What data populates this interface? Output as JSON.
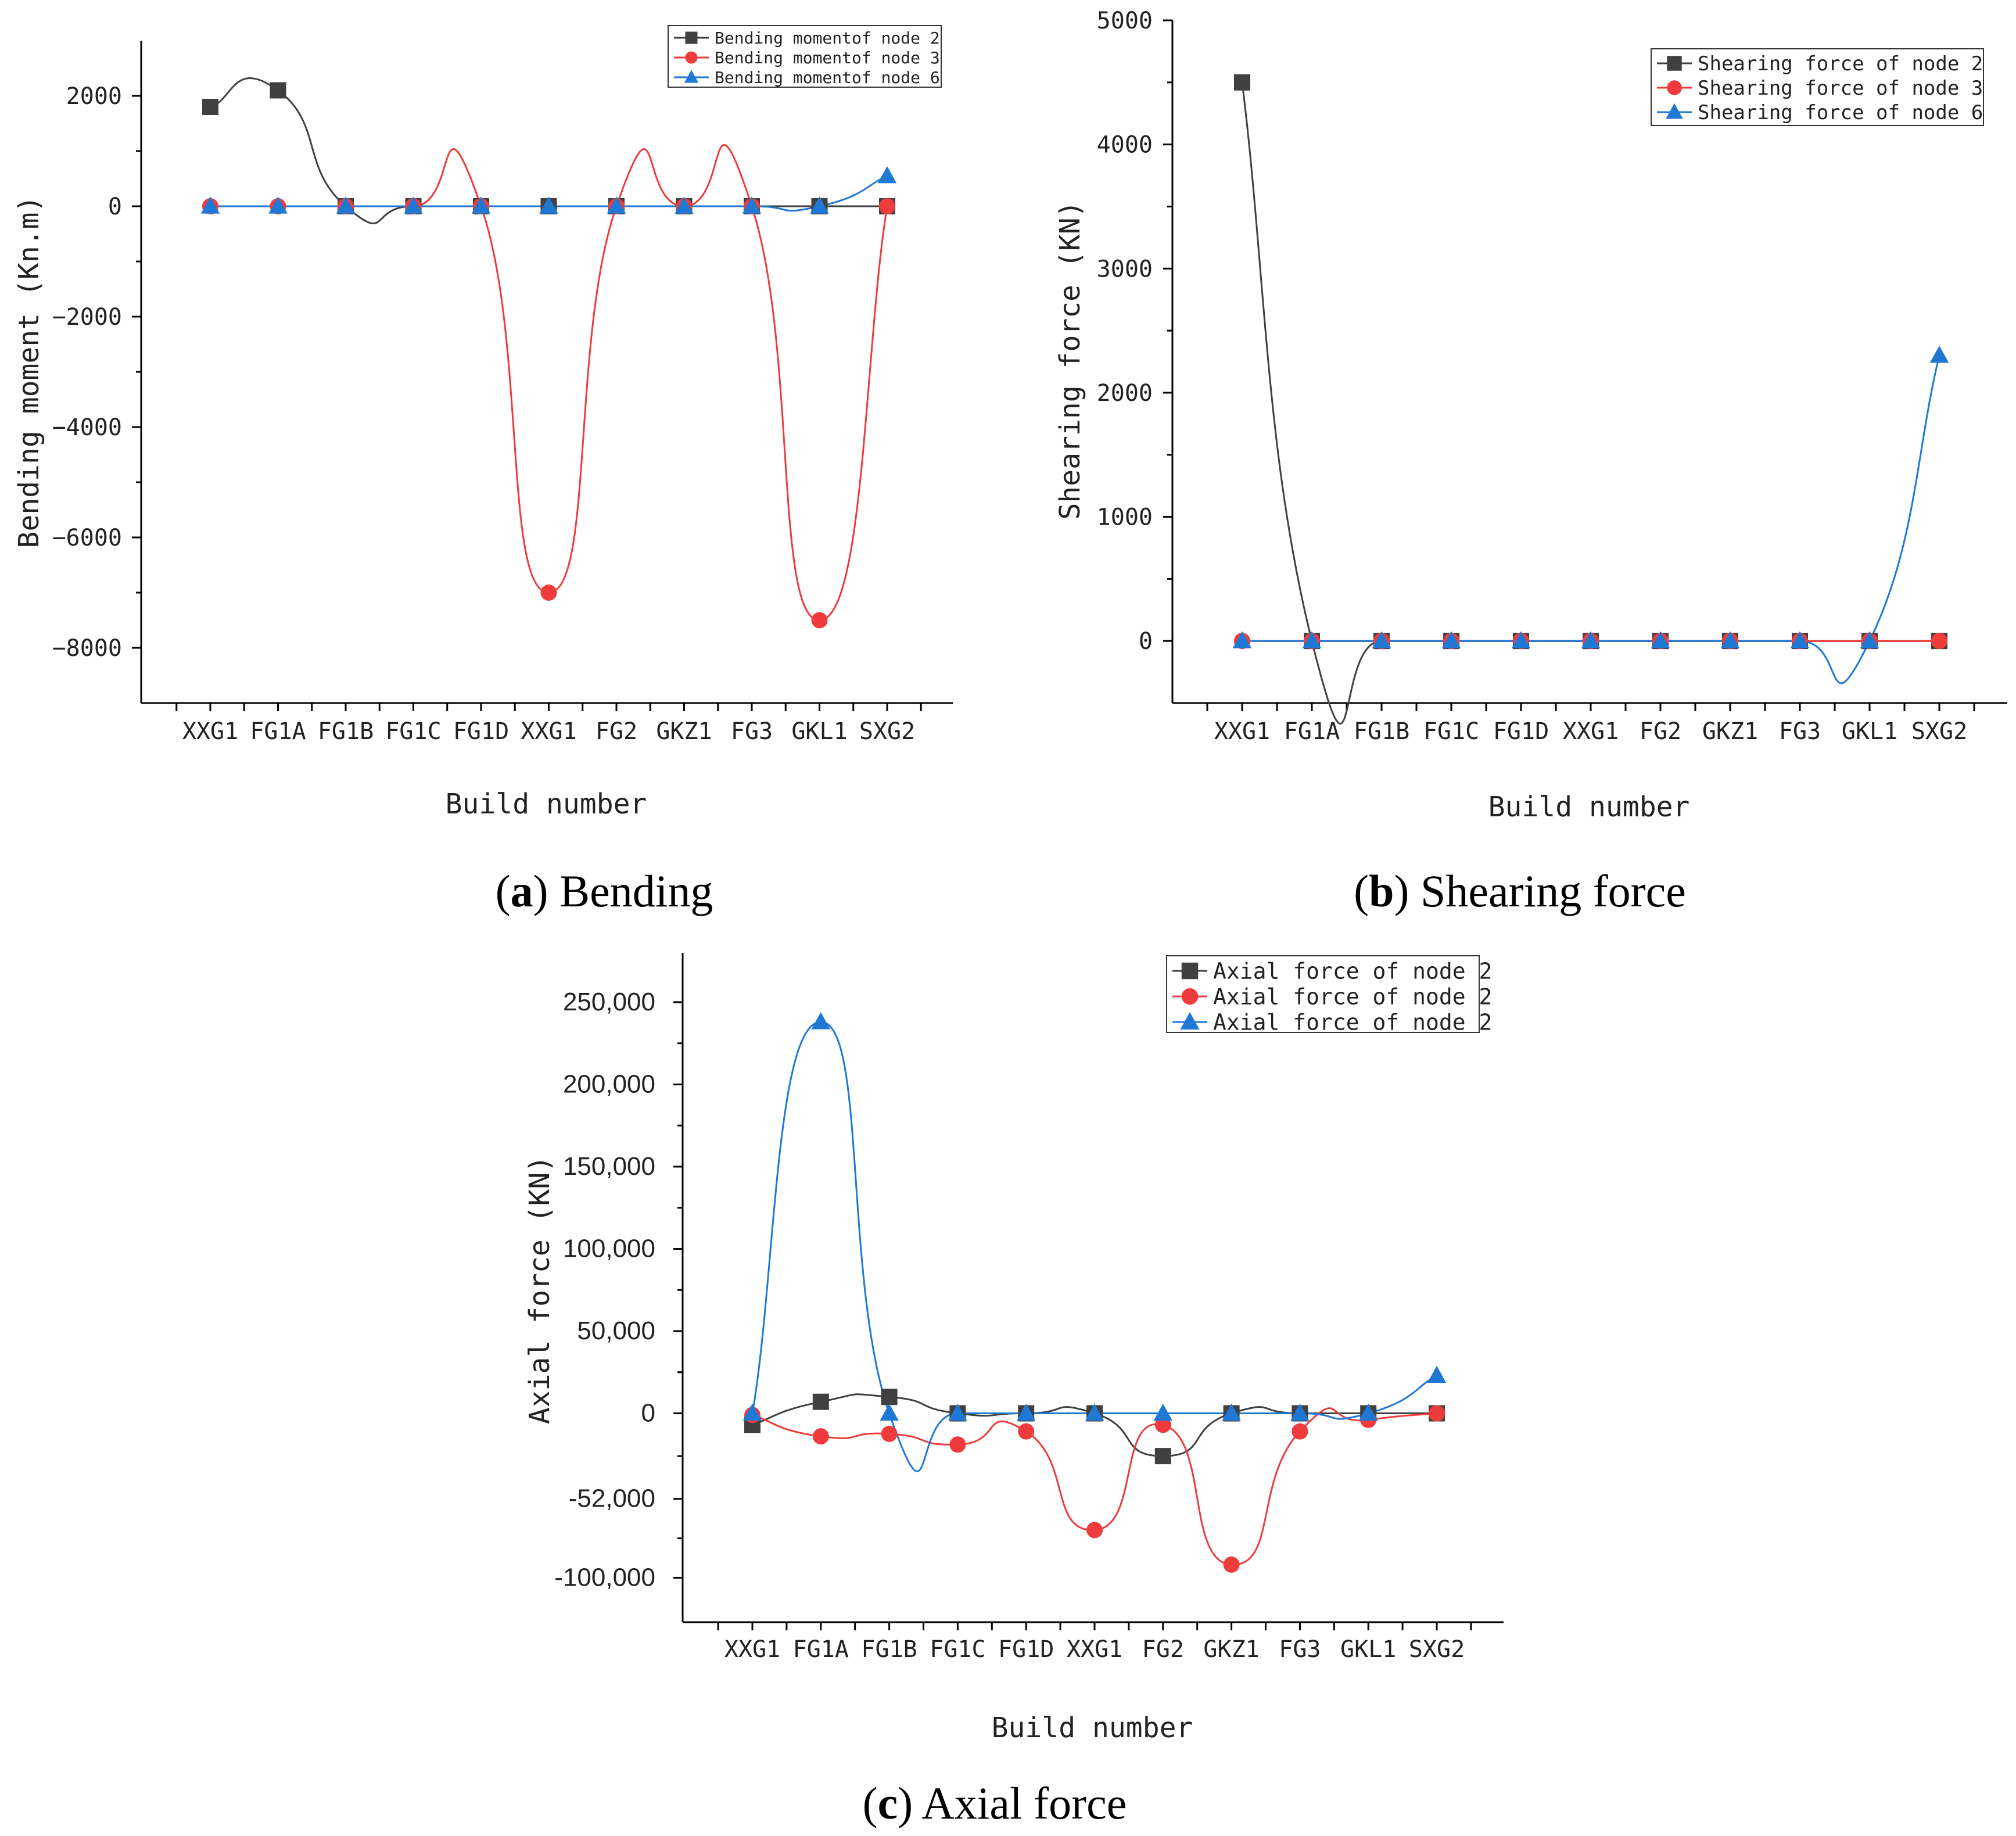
{
  "chart_data": [
    {
      "id": "a",
      "type": "line",
      "caption_letter": "a",
      "caption_text": "Bending",
      "ylabel": "Bending moment (Kn.m)",
      "xlabel": "Build number",
      "ylim": [
        -9000,
        3000
      ],
      "yticks": [
        2000,
        0,
        -2000,
        -4000,
        -6000,
        -8000
      ],
      "ytick_labels": [
        "2000",
        "0",
        "−2000",
        "−4000",
        "−6000",
        "−8000"
      ],
      "categories": [
        "XXG1",
        "FG1A",
        "FG1B",
        "FG1C",
        "FG1D",
        "XXG1",
        "FG2",
        "GKZ1",
        "FG3",
        "GKL1",
        "SXG2"
      ],
      "legend_position": "top-right",
      "series": [
        {
          "name": "Bending momentof node 2",
          "color": "#404040",
          "marker": "square",
          "values": [
            1800,
            2100,
            0,
            0,
            0,
            0,
            0,
            0,
            0,
            0,
            0
          ]
        },
        {
          "name": "Bending momentof node 3",
          "color": "#ef3b3b",
          "marker": "circle",
          "values": [
            0,
            0,
            0,
            0,
            0,
            -7000,
            0,
            0,
            0,
            -7500,
            0
          ]
        },
        {
          "name": "Bending momentof node 6",
          "color": "#1f78d4",
          "marker": "triangle",
          "values": [
            0,
            0,
            0,
            0,
            0,
            0,
            0,
            0,
            0,
            0,
            550
          ]
        }
      ]
    },
    {
      "id": "b",
      "type": "line",
      "caption_letter": "b",
      "caption_text": "Shearing force",
      "ylabel": "Shearing force (KN)",
      "xlabel": "Build number",
      "ylim": [
        -500,
        5000
      ],
      "yticks": [
        5000,
        4000,
        3000,
        2000,
        1000,
        0
      ],
      "ytick_labels": [
        "5000",
        "4000",
        "3000",
        "2000",
        "1000",
        "0"
      ],
      "categories": [
        "XXG1",
        "FG1A",
        "FG1B",
        "FG1C",
        "FG1D",
        "XXG1",
        "FG2",
        "GKZ1",
        "FG3",
        "GKL1",
        "SXG2"
      ],
      "legend_position": "top-right",
      "series": [
        {
          "name": "Shearing force of node 2",
          "color": "#404040",
          "marker": "square",
          "values": [
            4500,
            0,
            0,
            0,
            0,
            0,
            0,
            0,
            0,
            0,
            0
          ]
        },
        {
          "name": "Shearing force of node 3",
          "color": "#ef3b3b",
          "marker": "circle",
          "values": [
            0,
            0,
            0,
            0,
            0,
            0,
            0,
            0,
            0,
            0,
            0
          ]
        },
        {
          "name": "Shearing force of node 6",
          "color": "#1f78d4",
          "marker": "triangle",
          "values": [
            0,
            0,
            0,
            0,
            0,
            0,
            0,
            0,
            0,
            0,
            2300
          ]
        }
      ]
    },
    {
      "id": "c",
      "type": "line",
      "caption_letter": "c",
      "caption_text": "Axial force",
      "ylabel": "Axial force (KN)",
      "xlabel": "Build number",
      "ylim": [
        -127000,
        280000
      ],
      "yticks": [
        250000,
        200000,
        150000,
        100000,
        50000,
        0,
        -52000,
        -100000
      ],
      "ytick_labels": [
        "250,000",
        "200,000",
        "150,000",
        "100,000",
        "50,000",
        "0",
        "-52,000",
        "-100,000"
      ],
      "categories": [
        "XXG1",
        "FG1A",
        "FG1B",
        "FG1C",
        "FG1D",
        "XXG1",
        "FG2",
        "GKZ1",
        "FG3",
        "GKL1",
        "SXG2"
      ],
      "legend_position": "top-right",
      "series": [
        {
          "name": "Axial force of node 2",
          "color": "#404040",
          "marker": "square",
          "values": [
            -7000,
            7000,
            10000,
            0,
            0,
            0,
            -26000,
            0,
            0,
            0,
            0
          ]
        },
        {
          "name": "Axial force of node 2",
          "color": "#ef3b3b",
          "marker": "circle",
          "values": [
            -1000,
            -14000,
            -12500,
            -19000,
            -11000,
            -71000,
            -7000,
            -92000,
            -11000,
            -4000,
            0
          ]
        },
        {
          "name": "Axial force of node 2",
          "color": "#1f78d4",
          "marker": "triangle",
          "values": [
            0,
            238000,
            0,
            0,
            0,
            0,
            0,
            0,
            0,
            0,
            23000
          ]
        }
      ]
    }
  ]
}
